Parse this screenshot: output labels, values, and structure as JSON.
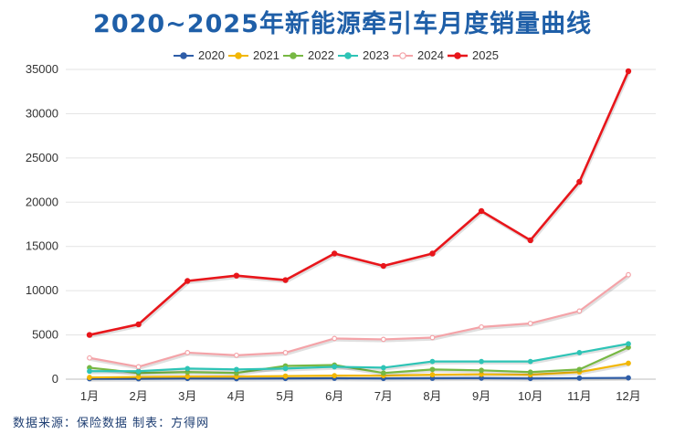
{
  "chart_data": {
    "type": "line",
    "title": "2020~2025年新能源牵引车月度销量曲线",
    "xlabel": "",
    "ylabel": "",
    "categories": [
      "1月",
      "2月",
      "3月",
      "4月",
      "5月",
      "6月",
      "7月",
      "8月",
      "9月",
      "10月",
      "11月",
      "12月"
    ],
    "ylim": [
      0,
      35000
    ],
    "yticks": [
      0,
      5000,
      10000,
      15000,
      20000,
      25000,
      30000,
      35000
    ],
    "grid": true,
    "legend_position": "top",
    "series": [
      {
        "name": "2020",
        "color": "#2e5da8",
        "values": [
          50,
          50,
          80,
          60,
          80,
          100,
          80,
          100,
          120,
          80,
          120,
          150
        ]
      },
      {
        "name": "2021",
        "color": "#f2b705",
        "values": [
          200,
          250,
          300,
          300,
          350,
          400,
          400,
          500,
          550,
          500,
          800,
          1800
        ]
      },
      {
        "name": "2022",
        "color": "#77b843",
        "values": [
          1300,
          700,
          800,
          700,
          1500,
          1600,
          700,
          1100,
          1000,
          800,
          1100,
          3600
        ]
      },
      {
        "name": "2023",
        "color": "#2ec4b6",
        "values": [
          900,
          900,
          1200,
          1100,
          1200,
          1400,
          1300,
          2000,
          2000,
          2000,
          3000,
          4000
        ]
      },
      {
        "name": "2024",
        "color": "#f4a3a8",
        "values": [
          2400,
          1400,
          3000,
          2700,
          3000,
          4600,
          4500,
          4700,
          5900,
          6300,
          7700,
          11800
        ]
      },
      {
        "name": "2025",
        "color": "#e8161b",
        "values": [
          5000,
          6200,
          11100,
          11700,
          11200,
          14200,
          12800,
          14200,
          19000,
          15700,
          22300,
          34800
        ]
      }
    ]
  },
  "footer": {
    "source": "数据来源：保险数据   制表：方得网"
  }
}
